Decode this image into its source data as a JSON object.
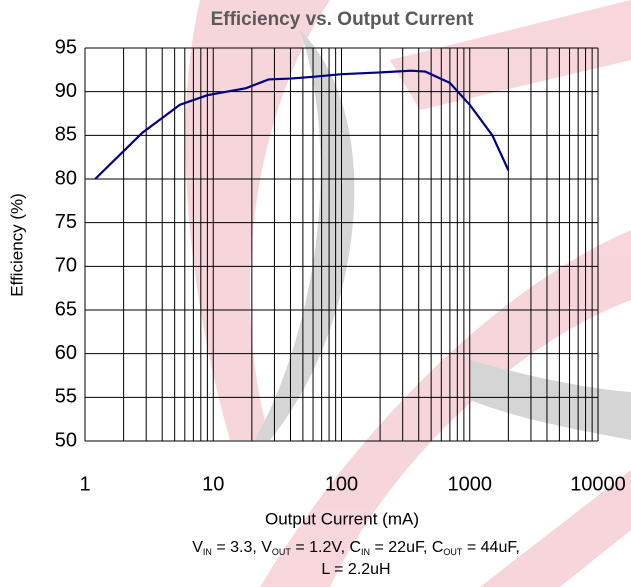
{
  "chart_data": {
    "type": "line",
    "title": "Efficiency vs. Output Current",
    "x_label": "Output Current (mA)",
    "y_label": "Efficiency (%)",
    "x_scale": "log",
    "xlim": [
      1,
      10000
    ],
    "ylim": [
      50,
      95
    ],
    "xticks": [
      1,
      10,
      100,
      1000,
      10000
    ],
    "yticks": [
      50,
      55,
      60,
      65,
      70,
      75,
      80,
      85,
      90,
      95
    ],
    "x_minor_ticks": [
      2,
      3,
      4,
      5,
      6,
      7,
      8,
      9,
      20,
      30,
      40,
      50,
      60,
      70,
      80,
      90,
      200,
      300,
      400,
      500,
      600,
      700,
      800,
      900,
      2000,
      3000,
      4000,
      5000,
      6000,
      7000,
      8000,
      9000
    ],
    "grid": true,
    "series": [
      {
        "color": "#000080",
        "x": [
          1.2,
          2.8,
          5.5,
          9,
          18,
          27,
          40,
          60,
          100,
          200,
          350,
          450,
          700,
          1000,
          1500,
          2000
        ],
        "values": [
          80,
          85.3,
          88.5,
          89.6,
          90.4,
          91.4,
          91.5,
          91.7,
          92,
          92.2,
          92.4,
          92.3,
          91,
          88.5,
          85,
          81
        ]
      }
    ],
    "caption": [
      [
        {
          "text": "V"
        },
        {
          "text": "IN",
          "sub": true
        },
        {
          "text": " = 3.3, V"
        },
        {
          "text": "OUT",
          "sub": true
        },
        {
          "text": " = 1.2V, C"
        },
        {
          "text": "IN",
          "sub": true
        },
        {
          "text": " = 22uF, C"
        },
        {
          "text": "OUT",
          "sub": true
        },
        {
          "text": " = 44uF,"
        }
      ],
      [
        {
          "text": "L = 2.2uH"
        }
      ]
    ]
  }
}
